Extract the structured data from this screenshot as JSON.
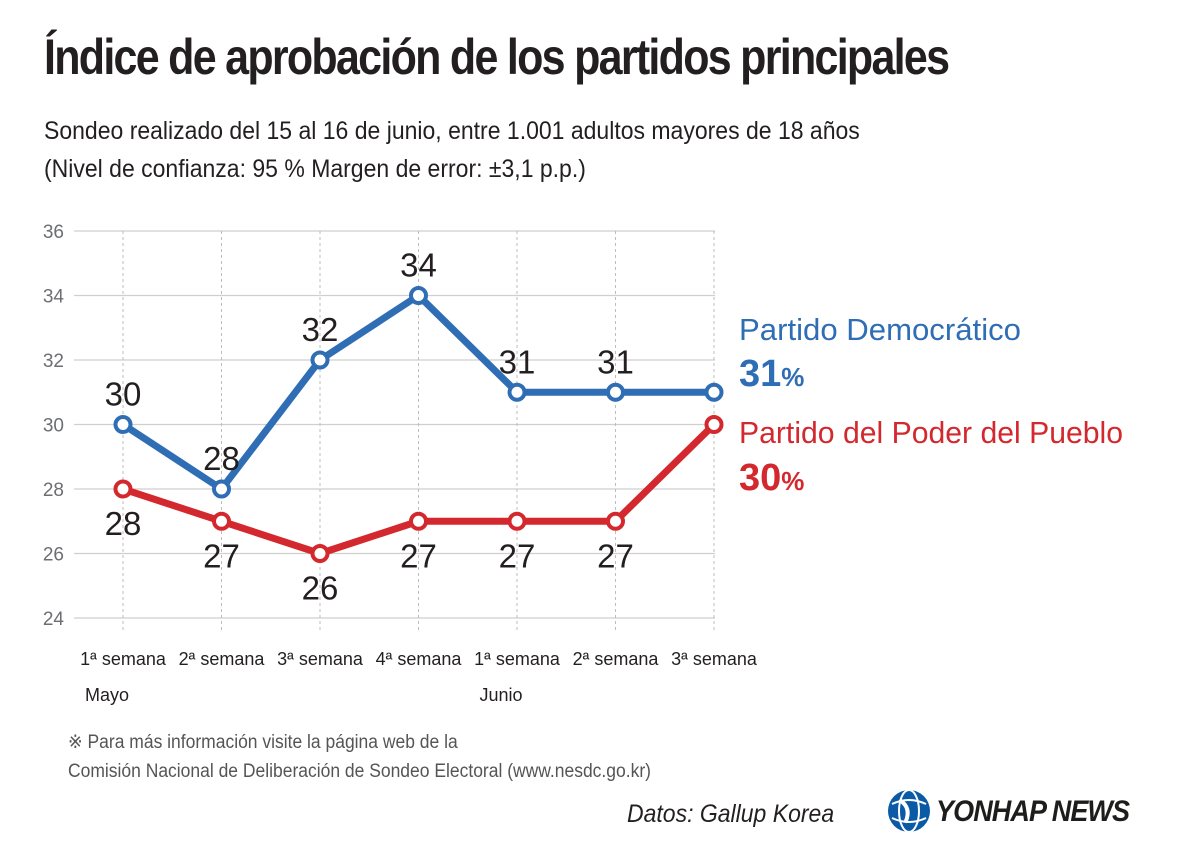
{
  "title": "Índice de aprobación de los partidos principales",
  "subtitle_line1": "Sondeo realizado del 15 al 16 de junio, entre 1.001 adultos mayores de 18 años",
  "subtitle_line2": "(Nivel de confianza: 95 % Margen de error: ±3,1 p.p.)",
  "note_line1": "※ Para más información visite la página web de la",
  "note_line2": "Comisión Nacional de Deliberación de Sondeo Electoral (www.nesdc.go.kr)",
  "source": "Datos: Gallup Korea",
  "logo_text": "YONHAP NEWS",
  "logo_icon": "yonhap-globe-icon",
  "chart_data": {
    "type": "line",
    "categories": [
      "1ª semana",
      "2ª semana",
      "3ª semana",
      "4ª semana",
      "1ª semana",
      "2ª semana",
      "3ª semana"
    ],
    "month_labels": [
      {
        "label": "Mayo",
        "index": 0
      },
      {
        "label": "Junio",
        "index": 4
      }
    ],
    "y_ticks": [
      24,
      26,
      28,
      30,
      32,
      34,
      36
    ],
    "ylim": [
      24,
      36
    ],
    "grid": true,
    "legend_placement": "right",
    "series": [
      {
        "name": "Partido Democrático",
        "final_label": "31",
        "final_unit": "%",
        "color": "#2f6db5",
        "values": [
          30,
          28,
          32,
          34,
          31,
          31,
          31
        ],
        "labels": [
          "30",
          "28",
          "32",
          "34",
          "31",
          "31",
          null
        ],
        "label_position": "above"
      },
      {
        "name": "Partido del Poder del Pueblo",
        "final_label": "30",
        "final_unit": "%",
        "color": "#d3282e",
        "values": [
          28,
          27,
          26,
          27,
          27,
          27,
          30
        ],
        "labels": [
          "28",
          "27",
          "26",
          "27",
          "27",
          "27",
          null
        ],
        "label_position": "below"
      }
    ]
  }
}
